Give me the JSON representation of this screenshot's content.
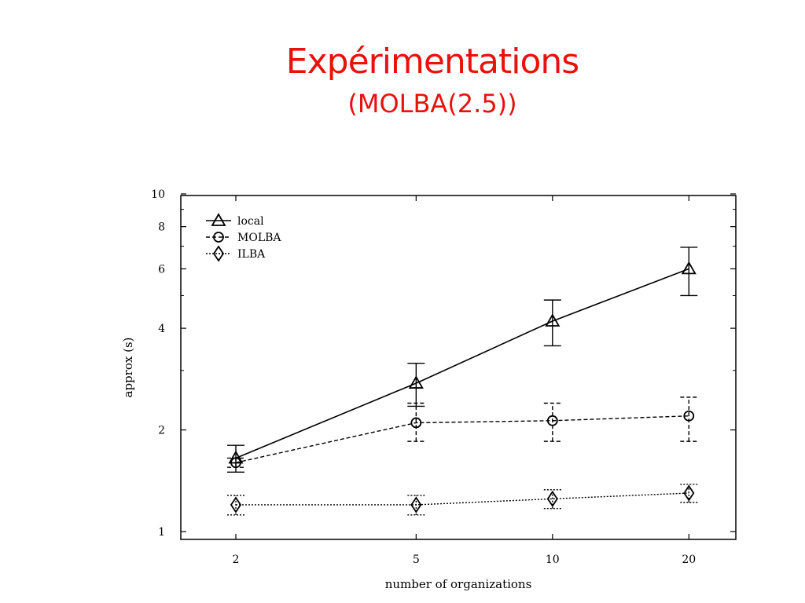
{
  "slide": {
    "title": "Expérimentations",
    "subtitle": "(MOLBA(2.5))"
  },
  "colors": {
    "title": "#e8120c",
    "ink": "#000000"
  },
  "chart_data": {
    "type": "line",
    "xlabel": "number of organizations",
    "ylabel": "approx (s)",
    "x": [
      2,
      5,
      10,
      20
    ],
    "x_ticks": [
      2,
      5,
      10,
      20
    ],
    "y_ticks": [
      1,
      2,
      4,
      6,
      8,
      10
    ],
    "ylim": [
      1,
      10
    ],
    "x_scale": "log",
    "y_scale": "log",
    "grid": false,
    "legend_position": "top-left",
    "series": [
      {
        "name": "local",
        "marker": "triangle",
        "line": "solid",
        "values": [
          1.65,
          2.75,
          4.2,
          6.0
        ],
        "err_low": [
          1.5,
          2.35,
          3.55,
          5.0
        ],
        "err_high": [
          1.8,
          3.15,
          4.85,
          6.95
        ]
      },
      {
        "name": "MOLBA",
        "marker": "circle",
        "line": "dashed",
        "values": [
          1.6,
          2.1,
          2.13,
          2.2
        ],
        "err_low": [
          1.55,
          1.85,
          1.85,
          1.85
        ],
        "err_high": [
          1.65,
          2.4,
          2.4,
          2.5
        ]
      },
      {
        "name": "ILBA",
        "marker": "diamond",
        "line": "dotted",
        "values": [
          1.2,
          1.2,
          1.25,
          1.3
        ],
        "err_low": [
          1.12,
          1.12,
          1.17,
          1.22
        ],
        "err_high": [
          1.28,
          1.28,
          1.33,
          1.38
        ]
      }
    ]
  }
}
